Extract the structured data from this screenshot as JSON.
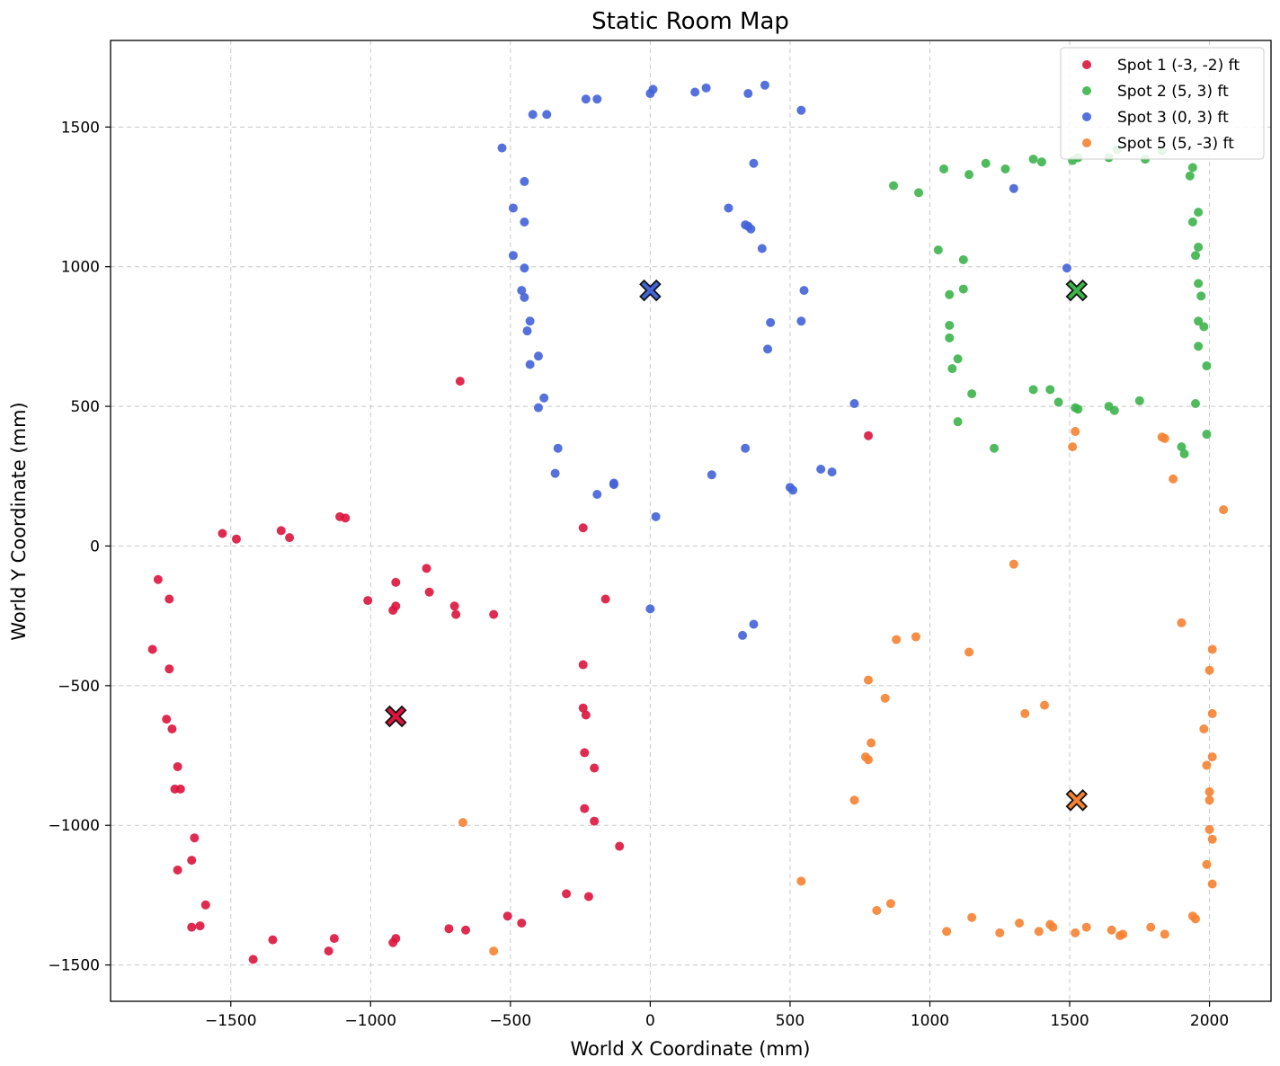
{
  "chart_data": {
    "type": "scatter",
    "title": "Static Room Map",
    "xlabel": "World X Coordinate (mm)",
    "ylabel": "World Y Coordinate (mm)",
    "xlim": [
      -1930,
      2220
    ],
    "ylim": [
      -1630,
      1810
    ],
    "xticks": [
      -1500,
      -1000,
      -500,
      0,
      500,
      1000,
      1500,
      2000
    ],
    "yticks": [
      -1500,
      -1000,
      -500,
      0,
      500,
      1000,
      1500
    ],
    "grid": true,
    "legend_position": "top-right",
    "series": [
      {
        "name": "Spot 1 (-3, -2) ft",
        "color": "#dc143c",
        "center": [
          -910,
          -610
        ],
        "points": [
          [
            -680,
            590
          ],
          [
            780,
            395
          ],
          [
            -240,
            65
          ],
          [
            -1530,
            45
          ],
          [
            -1480,
            25
          ],
          [
            -1320,
            55
          ],
          [
            -1290,
            30
          ],
          [
            -1110,
            105
          ],
          [
            -1090,
            100
          ],
          [
            -1760,
            -120
          ],
          [
            -1720,
            -190
          ],
          [
            -800,
            -80
          ],
          [
            -910,
            -130
          ],
          [
            -790,
            -165
          ],
          [
            -1010,
            -195
          ],
          [
            -910,
            -215
          ],
          [
            -920,
            -230
          ],
          [
            -700,
            -215
          ],
          [
            -695,
            -245
          ],
          [
            -560,
            -245
          ],
          [
            -160,
            -190
          ],
          [
            -1780,
            -370
          ],
          [
            -1720,
            -440
          ],
          [
            -240,
            -425
          ],
          [
            -1730,
            -620
          ],
          [
            -1710,
            -655
          ],
          [
            -240,
            -580
          ],
          [
            -230,
            -605
          ],
          [
            -1690,
            -790
          ],
          [
            -1700,
            -870
          ],
          [
            -1680,
            -870
          ],
          [
            -235,
            -740
          ],
          [
            -200,
            -795
          ],
          [
            -235,
            -940
          ],
          [
            -200,
            -985
          ],
          [
            -1630,
            -1045
          ],
          [
            -110,
            -1075
          ],
          [
            -1640,
            -1125
          ],
          [
            -1690,
            -1160
          ],
          [
            -300,
            -1245
          ],
          [
            -220,
            -1255
          ],
          [
            -1590,
            -1285
          ],
          [
            -510,
            -1325
          ],
          [
            -460,
            -1350
          ],
          [
            -1640,
            -1365
          ],
          [
            -1610,
            -1360
          ],
          [
            -720,
            -1370
          ],
          [
            -660,
            -1375
          ],
          [
            -1350,
            -1410
          ],
          [
            -1130,
            -1405
          ],
          [
            -910,
            -1405
          ],
          [
            -920,
            -1420
          ],
          [
            -1150,
            -1450
          ],
          [
            -1420,
            -1480
          ]
        ]
      },
      {
        "name": "Spot 2 (5, 3) ft",
        "color": "#3cb44b",
        "center": [
          1525,
          915
        ],
        "points": [
          [
            1050,
            1350
          ],
          [
            1140,
            1330
          ],
          [
            1200,
            1370
          ],
          [
            1270,
            1350
          ],
          [
            1370,
            1385
          ],
          [
            1400,
            1375
          ],
          [
            1510,
            1380
          ],
          [
            1530,
            1390
          ],
          [
            1640,
            1390
          ],
          [
            1670,
            1420
          ],
          [
            1770,
            1385
          ],
          [
            1830,
            1415
          ],
          [
            870,
            1290
          ],
          [
            960,
            1265
          ],
          [
            1940,
            1355
          ],
          [
            1930,
            1325
          ],
          [
            1960,
            1195
          ],
          [
            1940,
            1160
          ],
          [
            1030,
            1060
          ],
          [
            1120,
            1025
          ],
          [
            1960,
            1070
          ],
          [
            1950,
            1040
          ],
          [
            1070,
            900
          ],
          [
            1120,
            920
          ],
          [
            1960,
            940
          ],
          [
            1970,
            895
          ],
          [
            1070,
            790
          ],
          [
            1070,
            745
          ],
          [
            1960,
            805
          ],
          [
            1980,
            785
          ],
          [
            1100,
            670
          ],
          [
            1080,
            635
          ],
          [
            1960,
            715
          ],
          [
            1990,
            645
          ],
          [
            1150,
            545
          ],
          [
            1370,
            560
          ],
          [
            1430,
            560
          ],
          [
            1460,
            515
          ],
          [
            1520,
            495
          ],
          [
            1530,
            490
          ],
          [
            1640,
            500
          ],
          [
            1660,
            485
          ],
          [
            1750,
            520
          ],
          [
            1950,
            510
          ],
          [
            1100,
            445
          ],
          [
            1990,
            400
          ],
          [
            1230,
            350
          ],
          [
            1900,
            355
          ],
          [
            1910,
            330
          ]
        ]
      },
      {
        "name": "Spot 3 (0, 3) ft",
        "color": "#4363d8",
        "center": [
          0,
          915
        ],
        "points": [
          [
            -230,
            1600
          ],
          [
            -190,
            1600
          ],
          [
            0,
            1620
          ],
          [
            10,
            1635
          ],
          [
            160,
            1625
          ],
          [
            200,
            1640
          ],
          [
            350,
            1620
          ],
          [
            410,
            1650
          ],
          [
            540,
            1560
          ],
          [
            -420,
            1545
          ],
          [
            -370,
            1545
          ],
          [
            -530,
            1425
          ],
          [
            370,
            1370
          ],
          [
            -450,
            1305
          ],
          [
            -490,
            1210
          ],
          [
            280,
            1210
          ],
          [
            340,
            1150
          ],
          [
            350,
            1145
          ],
          [
            360,
            1135
          ],
          [
            -450,
            1160
          ],
          [
            400,
            1065
          ],
          [
            -490,
            1040
          ],
          [
            -450,
            995
          ],
          [
            1300,
            1280
          ],
          [
            1490,
            995
          ],
          [
            -460,
            915
          ],
          [
            -450,
            890
          ],
          [
            550,
            915
          ],
          [
            -430,
            805
          ],
          [
            -440,
            770
          ],
          [
            430,
            800
          ],
          [
            540,
            805
          ],
          [
            -400,
            680
          ],
          [
            -430,
            650
          ],
          [
            420,
            705
          ],
          [
            -380,
            530
          ],
          [
            -400,
            495
          ],
          [
            730,
            510
          ],
          [
            -330,
            350
          ],
          [
            340,
            350
          ],
          [
            -340,
            260
          ],
          [
            610,
            275
          ],
          [
            650,
            265
          ],
          [
            -130,
            225
          ],
          [
            -130,
            220
          ],
          [
            220,
            255
          ],
          [
            -190,
            185
          ],
          [
            500,
            210
          ],
          [
            510,
            200
          ],
          [
            20,
            105
          ],
          [
            0,
            -225
          ],
          [
            370,
            -280
          ],
          [
            330,
            -320
          ]
        ]
      },
      {
        "name": "Spot 5 (5, -3) ft",
        "color": "#f58231",
        "center": [
          1525,
          -910
        ],
        "points": [
          [
            1520,
            410
          ],
          [
            1510,
            355
          ],
          [
            1830,
            390
          ],
          [
            1840,
            385
          ],
          [
            1870,
            240
          ],
          [
            2050,
            130
          ],
          [
            1300,
            -65
          ],
          [
            1900,
            -275
          ],
          [
            880,
            -335
          ],
          [
            950,
            -325
          ],
          [
            1140,
            -380
          ],
          [
            2010,
            -370
          ],
          [
            780,
            -480
          ],
          [
            2000,
            -445
          ],
          [
            840,
            -545
          ],
          [
            1410,
            -570
          ],
          [
            1340,
            -600
          ],
          [
            2010,
            -600
          ],
          [
            790,
            -705
          ],
          [
            1980,
            -655
          ],
          [
            770,
            -755
          ],
          [
            780,
            -765
          ],
          [
            1990,
            -785
          ],
          [
            2010,
            -755
          ],
          [
            730,
            -910
          ],
          [
            2000,
            -880
          ],
          [
            2000,
            -910
          ],
          [
            -670,
            -990
          ],
          [
            2000,
            -1015
          ],
          [
            2010,
            -1050
          ],
          [
            1990,
            -1140
          ],
          [
            540,
            -1200
          ],
          [
            2010,
            -1210
          ],
          [
            860,
            -1280
          ],
          [
            810,
            -1305
          ],
          [
            1150,
            -1330
          ],
          [
            1320,
            -1350
          ],
          [
            1430,
            -1355
          ],
          [
            1440,
            -1365
          ],
          [
            1560,
            -1365
          ],
          [
            1650,
            -1375
          ],
          [
            1790,
            -1365
          ],
          [
            1940,
            -1325
          ],
          [
            1950,
            -1335
          ],
          [
            1060,
            -1380
          ],
          [
            1250,
            -1385
          ],
          [
            1390,
            -1380
          ],
          [
            1520,
            -1385
          ],
          [
            1690,
            -1390
          ],
          [
            1680,
            -1395
          ],
          [
            1840,
            -1390
          ],
          [
            -560,
            -1450
          ]
        ]
      }
    ]
  }
}
